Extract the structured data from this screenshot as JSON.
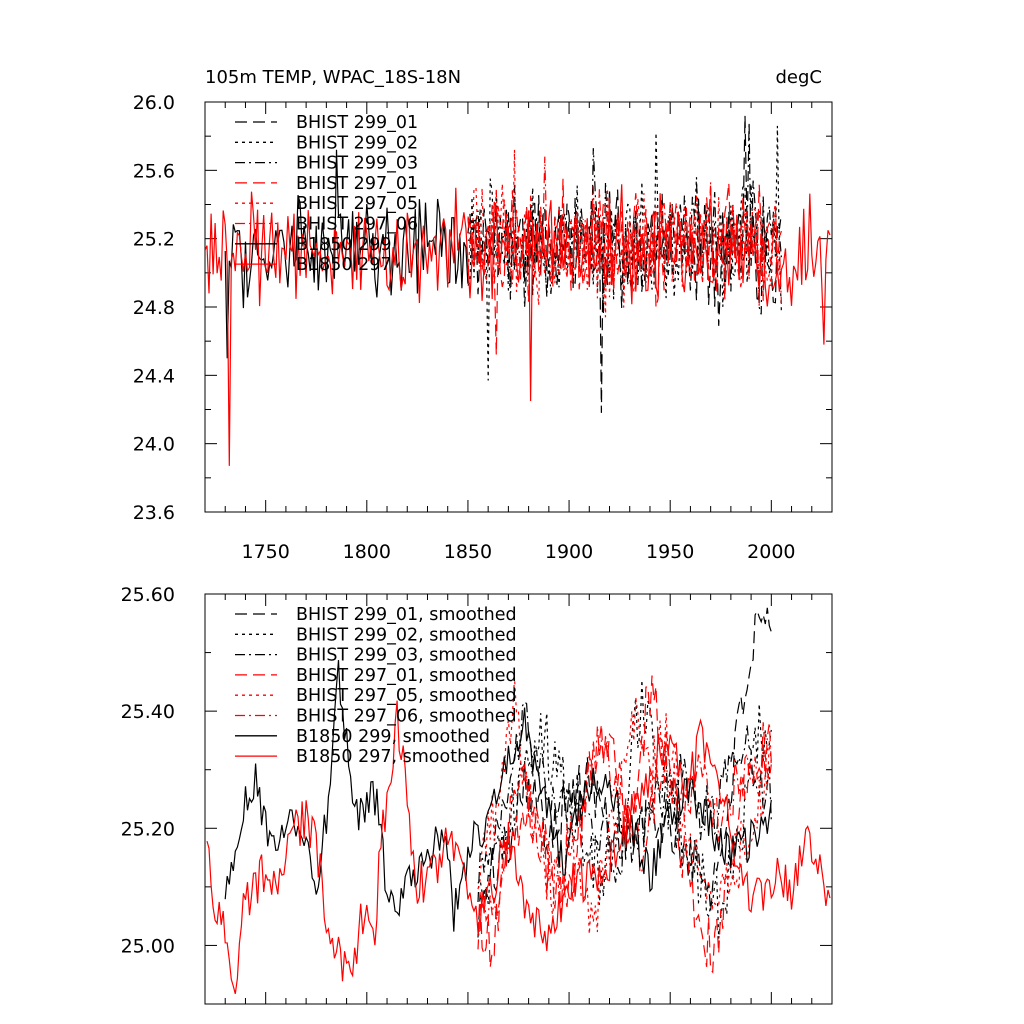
{
  "chart_data": [
    {
      "type": "line",
      "title_left": "105m TEMP, WPAC_18S-18N",
      "title_right": "degC",
      "xlim": [
        1720,
        2030
      ],
      "ylim": [
        23.6,
        26.0
      ],
      "x_ticks": [
        1750,
        1800,
        1850,
        1900,
        1950,
        2000
      ],
      "x_tick_labels": [
        "1750",
        "1800",
        "1850",
        "1900",
        "1950",
        "2000"
      ],
      "y_ticks": [
        23.6,
        24.0,
        24.4,
        24.8,
        25.2,
        25.6,
        26.0
      ],
      "y_tick_labels": [
        "23.6",
        "24.0",
        "24.4",
        "24.8",
        "25.2",
        "25.6",
        "26.0"
      ],
      "grid": false,
      "legend_position": "top-left",
      "series": [
        {
          "name": "BHIST 299_01",
          "color": "#000000",
          "dash": "long-dash",
          "x_range": [
            1850,
            2005
          ],
          "mean": 25.18,
          "amp": 0.3,
          "seed": 11,
          "highlights": [
            [
              1916,
              24.18
            ],
            [
              1987,
              25.92
            ]
          ]
        },
        {
          "name": "BHIST 299_02",
          "color": "#000000",
          "dash": "dot",
          "x_range": [
            1850,
            2005
          ],
          "mean": 25.17,
          "amp": 0.3,
          "seed": 23,
          "highlights": [
            [
              1860,
              24.37
            ],
            [
              1943,
              25.82
            ],
            [
              2003,
              25.86
            ]
          ]
        },
        {
          "name": "BHIST 299_03",
          "color": "#000000",
          "dash": "dash-dot",
          "x_range": [
            1850,
            2005
          ],
          "mean": 25.18,
          "amp": 0.28,
          "seed": 37,
          "highlights": [
            [
              1912,
              25.73
            ],
            [
              1989,
              25.88
            ]
          ]
        },
        {
          "name": "BHIST 297_01",
          "color": "#ff0000",
          "dash": "long-dash",
          "x_range": [
            1850,
            2005
          ],
          "mean": 25.17,
          "amp": 0.28,
          "seed": 41,
          "highlights": [
            [
              1864,
              24.52
            ]
          ]
        },
        {
          "name": "BHIST 297_05",
          "color": "#ff0000",
          "dash": "dot",
          "x_range": [
            1850,
            2005
          ],
          "mean": 25.16,
          "amp": 0.28,
          "seed": 53,
          "highlights": [
            [
              1873,
              25.72
            ]
          ]
        },
        {
          "name": "BHIST 297_06",
          "color": "#ff0000",
          "dash": "dash-dot",
          "x_range": [
            1850,
            2005
          ],
          "mean": 25.17,
          "amp": 0.27,
          "seed": 67,
          "highlights": [
            [
              1888,
              25.68
            ]
          ]
        },
        {
          "name": "B1850 299",
          "color": "#000000",
          "dash": "solid",
          "x_range": [
            1730,
            1850
          ],
          "mean": 25.12,
          "amp": 0.25,
          "seed": 71,
          "highlights": [
            [
              1731,
              24.5
            ],
            [
              1785,
              25.72
            ]
          ]
        },
        {
          "name": "B1850 297",
          "color": "#ff0000",
          "dash": "solid",
          "x_range": [
            1720,
            2029
          ],
          "mean": 25.12,
          "amp": 0.26,
          "seed": 83,
          "highlights": [
            [
              1732,
              23.87
            ],
            [
              1881,
              24.25
            ],
            [
              2026,
              24.58
            ]
          ]
        }
      ]
    },
    {
      "type": "line",
      "xlim": [
        1720,
        2030
      ],
      "ylim": [
        24.9,
        25.6
      ],
      "y_ticks": [
        25.0,
        25.2,
        25.4,
        25.6
      ],
      "y_tick_labels": [
        "25.00",
        "25.20",
        "25.40",
        "25.60"
      ],
      "grid": false,
      "legend_position": "top-left",
      "series": [
        {
          "name": "BHIST 299_01, smoothed",
          "color": "#000000",
          "dash": "long-dash",
          "x_range": [
            1855,
            2000
          ],
          "knots": [
            [
              1855,
              25.05
            ],
            [
              1862,
              25.12
            ],
            [
              1870,
              25.18
            ],
            [
              1878,
              25.3
            ],
            [
              1888,
              25.2
            ],
            [
              1900,
              25.25
            ],
            [
              1910,
              25.28
            ],
            [
              1920,
              25.2
            ],
            [
              1930,
              25.18
            ],
            [
              1940,
              25.22
            ],
            [
              1950,
              25.2
            ],
            [
              1960,
              25.15
            ],
            [
              1970,
              25.1
            ],
            [
              1975,
              25.15
            ],
            [
              1980,
              25.28
            ],
            [
              1985,
              25.4
            ],
            [
              1990,
              25.5
            ],
            [
              1995,
              25.54
            ],
            [
              2000,
              25.52
            ]
          ],
          "noise": 0.05,
          "seed": 101
        },
        {
          "name": "BHIST 299_02, smoothed",
          "color": "#000000",
          "dash": "dot",
          "x_range": [
            1855,
            2000
          ],
          "knots": [
            [
              1855,
              25.08
            ],
            [
              1865,
              25.15
            ],
            [
              1875,
              25.25
            ],
            [
              1887,
              25.35
            ],
            [
              1895,
              25.3
            ],
            [
              1905,
              25.2
            ],
            [
              1915,
              25.12
            ],
            [
              1928,
              25.25
            ],
            [
              1935,
              25.42
            ],
            [
              1945,
              25.3
            ],
            [
              1955,
              25.18
            ],
            [
              1965,
              25.12
            ],
            [
              1975,
              25.05
            ],
            [
              1985,
              25.2
            ],
            [
              1993,
              25.36
            ],
            [
              2000,
              25.38
            ]
          ],
          "noise": 0.06,
          "seed": 113
        },
        {
          "name": "BHIST 299_03, smoothed",
          "color": "#000000",
          "dash": "dash-dot",
          "x_range": [
            1855,
            2000
          ],
          "knots": [
            [
              1855,
              25.1
            ],
            [
              1865,
              25.18
            ],
            [
              1878,
              25.4
            ],
            [
              1885,
              25.3
            ],
            [
              1895,
              25.22
            ],
            [
              1905,
              25.25
            ],
            [
              1915,
              25.18
            ],
            [
              1925,
              25.15
            ],
            [
              1935,
              25.2
            ],
            [
              1945,
              25.25
            ],
            [
              1955,
              25.3
            ],
            [
              1965,
              25.22
            ],
            [
              1975,
              25.25
            ],
            [
              1985,
              25.35
            ],
            [
              1992,
              25.3
            ],
            [
              2000,
              25.25
            ]
          ],
          "noise": 0.05,
          "seed": 127
        },
        {
          "name": "BHIST 297_01, smoothed",
          "color": "#ff0000",
          "dash": "long-dash",
          "x_range": [
            1855,
            2000
          ],
          "knots": [
            [
              1855,
              25.05
            ],
            [
              1862,
              25.0
            ],
            [
              1870,
              25.18
            ],
            [
              1880,
              25.25
            ],
            [
              1890,
              25.12
            ],
            [
              1900,
              25.08
            ],
            [
              1910,
              25.3
            ],
            [
              1920,
              25.35
            ],
            [
              1930,
              25.2
            ],
            [
              1940,
              25.44
            ],
            [
              1950,
              25.3
            ],
            [
              1958,
              25.12
            ],
            [
              1965,
              25.02
            ],
            [
              1972,
              25.0
            ],
            [
              1980,
              25.1
            ],
            [
              1988,
              25.3
            ],
            [
              1995,
              25.34
            ],
            [
              2000,
              25.32
            ]
          ],
          "noise": 0.05,
          "seed": 131
        },
        {
          "name": "BHIST 297_05, smoothed",
          "color": "#ff0000",
          "dash": "dot",
          "x_range": [
            1855,
            2000
          ],
          "knots": [
            [
              1855,
              25.1
            ],
            [
              1865,
              25.25
            ],
            [
              1872,
              25.42
            ],
            [
              1882,
              25.2
            ],
            [
              1892,
              25.1
            ],
            [
              1902,
              25.15
            ],
            [
              1912,
              25.05
            ],
            [
              1922,
              25.2
            ],
            [
              1930,
              25.4
            ],
            [
              1940,
              25.3
            ],
            [
              1950,
              25.35
            ],
            [
              1960,
              25.15
            ],
            [
              1970,
              25.1
            ],
            [
              1980,
              25.12
            ],
            [
              1990,
              25.2
            ],
            [
              2000,
              25.3
            ]
          ],
          "noise": 0.06,
          "seed": 149
        },
        {
          "name": "BHIST 297_06, smoothed",
          "color": "#ff0000",
          "dash": "dash-dot",
          "x_range": [
            1855,
            2000
          ],
          "knots": [
            [
              1855,
              25.02
            ],
            [
              1865,
              25.1
            ],
            [
              1875,
              25.3
            ],
            [
              1885,
              25.2
            ],
            [
              1895,
              25.12
            ],
            [
              1905,
              25.22
            ],
            [
              1915,
              25.35
            ],
            [
              1925,
              25.25
            ],
            [
              1935,
              25.15
            ],
            [
              1945,
              25.3
            ],
            [
              1955,
              25.25
            ],
            [
              1965,
              25.3
            ],
            [
              1975,
              25.2
            ],
            [
              1985,
              25.3
            ],
            [
              1995,
              25.28
            ],
            [
              2000,
              25.36
            ]
          ],
          "noise": 0.05,
          "seed": 157
        },
        {
          "name": "B1850 299, smoothed",
          "color": "#000000",
          "dash": "solid",
          "x_range": [
            1730,
            2000
          ],
          "knots": [
            [
              1730,
              25.08
            ],
            [
              1738,
              25.22
            ],
            [
              1745,
              25.28
            ],
            [
              1752,
              25.16
            ],
            [
              1760,
              25.22
            ],
            [
              1770,
              25.18
            ],
            [
              1776,
              25.1
            ],
            [
              1782,
              25.28
            ],
            [
              1786,
              25.48
            ],
            [
              1790,
              25.34
            ],
            [
              1795,
              25.22
            ],
            [
              1800,
              25.24
            ],
            [
              1805,
              25.26
            ],
            [
              1810,
              25.08
            ],
            [
              1815,
              25.06
            ],
            [
              1822,
              25.12
            ],
            [
              1830,
              25.15
            ],
            [
              1838,
              25.2
            ],
            [
              1843,
              25.05
            ],
            [
              1850,
              25.16
            ],
            [
              1860,
              25.22
            ],
            [
              1870,
              25.32
            ],
            [
              1878,
              25.38
            ],
            [
              1888,
              25.25
            ],
            [
              1898,
              25.12
            ],
            [
              1908,
              25.28
            ],
            [
              1920,
              25.26
            ],
            [
              1930,
              25.2
            ],
            [
              1940,
              25.12
            ],
            [
              1950,
              25.22
            ],
            [
              1960,
              25.28
            ],
            [
              1970,
              25.2
            ],
            [
              1980,
              25.15
            ],
            [
              1990,
              25.18
            ],
            [
              2000,
              25.22
            ]
          ],
          "noise": 0.035,
          "seed": 163
        },
        {
          "name": "B1850 297, smoothed",
          "color": "#ff0000",
          "dash": "solid",
          "x_range": [
            1721,
            2029
          ],
          "knots": [
            [
              1721,
              25.17
            ],
            [
              1724,
              25.05
            ],
            [
              1728,
              25.06
            ],
            [
              1732,
              24.98
            ],
            [
              1735,
              24.95
            ],
            [
              1740,
              25.08
            ],
            [
              1748,
              25.12
            ],
            [
              1755,
              25.1
            ],
            [
              1762,
              25.18
            ],
            [
              1770,
              25.22
            ],
            [
              1775,
              25.18
            ],
            [
              1780,
              25.05
            ],
            [
              1785,
              25.0
            ],
            [
              1790,
              24.96
            ],
            [
              1795,
              25.0
            ],
            [
              1800,
              25.08
            ],
            [
              1803,
              25.0
            ],
            [
              1808,
              25.2
            ],
            [
              1815,
              25.38
            ],
            [
              1820,
              25.25
            ],
            [
              1825,
              25.1
            ],
            [
              1832,
              25.12
            ],
            [
              1840,
              25.18
            ],
            [
              1848,
              25.1
            ],
            [
              1855,
              25.05
            ],
            [
              1862,
              25.1
            ],
            [
              1870,
              25.18
            ],
            [
              1880,
              25.05
            ],
            [
              1890,
              25.0
            ],
            [
              1900,
              25.1
            ],
            [
              1910,
              25.12
            ],
            [
              1920,
              25.15
            ],
            [
              1930,
              25.22
            ],
            [
              1940,
              25.3
            ],
            [
              1950,
              25.36
            ],
            [
              1958,
              25.25
            ],
            [
              1965,
              25.35
            ],
            [
              1972,
              25.28
            ],
            [
              1980,
              25.2
            ],
            [
              1988,
              25.1
            ],
            [
              1996,
              25.08
            ],
            [
              2003,
              25.12
            ],
            [
              2010,
              25.1
            ],
            [
              2015,
              25.16
            ],
            [
              2020,
              25.18
            ],
            [
              2025,
              25.12
            ],
            [
              2029,
              25.05
            ]
          ],
          "noise": 0.04,
          "seed": 179
        }
      ]
    }
  ]
}
